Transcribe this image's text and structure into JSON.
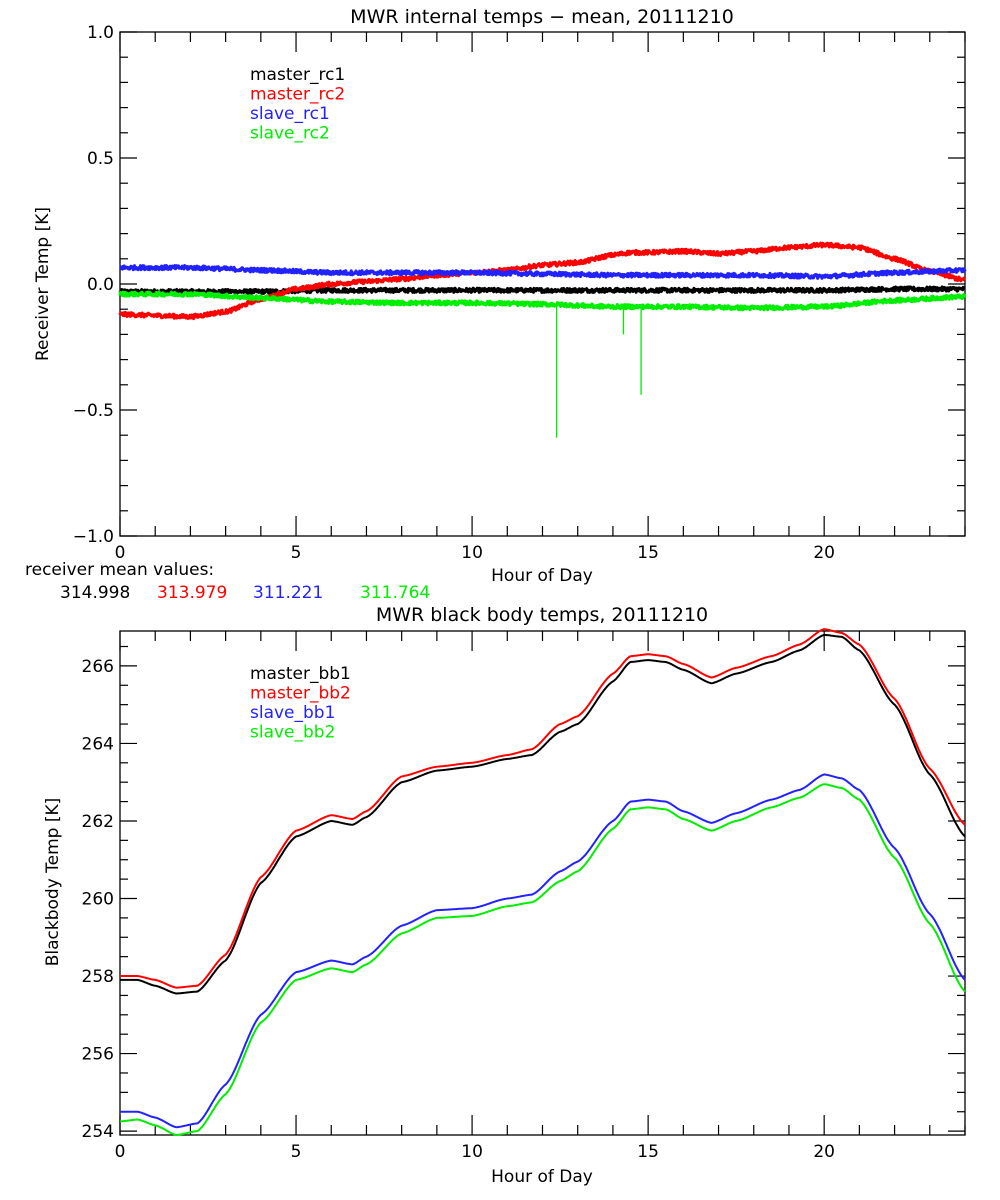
{
  "chart_data": [
    {
      "type": "line",
      "title": "MWR internal temps − mean, 20111210",
      "xlabel": "Hour of Day",
      "ylabel": "Receiver Temp [K]",
      "xlim": [
        0,
        24
      ],
      "ylim": [
        -1.0,
        1.0
      ],
      "xticks": [
        0,
        5,
        10,
        15,
        20
      ],
      "xtick_labels": [
        "0",
        "5",
        "10",
        "15",
        "20"
      ],
      "x_minor_step": 1,
      "yticks": [
        -1.0,
        -0.5,
        0.0,
        0.5,
        1.0
      ],
      "ytick_labels": [
        "−1.0",
        "−0.5",
        "0.0",
        "0.5",
        "1.0"
      ],
      "y_minor_step": 0.1,
      "grid": false,
      "legend_position": "top-left",
      "noise": 0.008,
      "series": [
        {
          "name": "master_rc1",
          "color": "#000000",
          "x": [
            0,
            2,
            4,
            6,
            8,
            10,
            12,
            14,
            16,
            18,
            20,
            22,
            24
          ],
          "y": [
            -0.03,
            -0.03,
            -0.03,
            -0.025,
            -0.025,
            -0.025,
            -0.025,
            -0.025,
            -0.025,
            -0.025,
            -0.025,
            -0.02,
            -0.02
          ]
        },
        {
          "name": "master_rc2",
          "color": "#ff0000",
          "x": [
            0,
            1,
            2,
            3,
            4,
            5,
            6,
            7,
            8,
            9,
            10,
            11,
            12,
            13,
            14,
            14.5,
            15,
            16,
            17,
            18,
            19,
            20,
            21,
            22,
            23,
            24
          ],
          "y": [
            -0.12,
            -0.125,
            -0.13,
            -0.11,
            -0.06,
            -0.02,
            0.0,
            0.01,
            0.02,
            0.035,
            0.045,
            0.055,
            0.075,
            0.085,
            0.115,
            0.125,
            0.125,
            0.13,
            0.12,
            0.13,
            0.145,
            0.155,
            0.145,
            0.1,
            0.05,
            0.015
          ]
        },
        {
          "name": "slave_rc1",
          "color": "#2222ff",
          "x": [
            0,
            2,
            4,
            6,
            8,
            10,
            12,
            14,
            16,
            18,
            20,
            22,
            24
          ],
          "y": [
            0.065,
            0.065,
            0.055,
            0.045,
            0.045,
            0.045,
            0.04,
            0.035,
            0.035,
            0.035,
            0.03,
            0.045,
            0.055
          ]
        },
        {
          "name": "slave_rc2",
          "color": "#00ee00",
          "x": [
            0,
            2,
            4,
            6,
            8,
            10,
            12,
            14,
            16,
            18,
            20,
            22,
            24
          ],
          "y": [
            -0.04,
            -0.04,
            -0.055,
            -0.07,
            -0.075,
            -0.075,
            -0.08,
            -0.09,
            -0.09,
            -0.095,
            -0.09,
            -0.065,
            -0.05
          ],
          "spikes": [
            {
              "x": 12.4,
              "y": -0.61
            },
            {
              "x": 14.3,
              "y": -0.2
            },
            {
              "x": 14.8,
              "y": -0.44
            }
          ]
        }
      ],
      "annotation": {
        "label": "receiver mean values:",
        "values": [
          {
            "text": "314.998",
            "color": "#000000"
          },
          {
            "text": "313.979",
            "color": "#ff0000"
          },
          {
            "text": "311.221",
            "color": "#2222ff"
          },
          {
            "text": "311.764",
            "color": "#00ee00"
          }
        ]
      }
    },
    {
      "type": "line",
      "title": "MWR black body temps, 20111210",
      "xlabel": "Hour of Day",
      "ylabel": "Blackbody Temp [K]",
      "xlim": [
        0,
        24
      ],
      "ylim": [
        253.9,
        266.9
      ],
      "xticks": [
        0,
        5,
        10,
        15,
        20
      ],
      "xtick_labels": [
        "0",
        "5",
        "10",
        "15",
        "20"
      ],
      "x_minor_step": 1,
      "yticks": [
        254,
        256,
        258,
        260,
        262,
        264,
        266
      ],
      "ytick_labels": [
        "254",
        "256",
        "258",
        "260",
        "262",
        "264",
        "266"
      ],
      "y_minor_step": 0.5,
      "grid": false,
      "legend_position": "top-left",
      "series": [
        {
          "name": "master_bb1",
          "color": "#000000",
          "x": [
            0,
            0.5,
            1,
            1.6,
            2.2,
            3,
            4,
            5,
            6,
            6.6,
            7,
            8,
            9,
            10,
            11,
            11.7,
            12.5,
            13,
            14,
            14.5,
            15,
            15.5,
            16,
            16.8,
            17.5,
            18.5,
            19.3,
            20,
            20.5,
            21,
            22,
            23,
            24
          ],
          "y": [
            257.9,
            257.9,
            257.75,
            257.55,
            257.6,
            258.4,
            260.4,
            261.6,
            262.0,
            261.9,
            262.1,
            263.0,
            263.3,
            263.4,
            263.6,
            263.7,
            264.3,
            264.5,
            265.6,
            266.1,
            266.15,
            266.1,
            265.9,
            265.55,
            265.8,
            266.1,
            266.4,
            266.8,
            266.75,
            266.4,
            265.0,
            263.2,
            261.6
          ]
        },
        {
          "name": "master_bb2",
          "color": "#ff0000",
          "x": [
            0,
            0.5,
            1,
            1.6,
            2.2,
            3,
            4,
            5,
            6,
            6.6,
            7,
            8,
            9,
            10,
            11,
            11.7,
            12.5,
            13,
            14,
            14.5,
            15,
            15.5,
            16,
            16.8,
            17.5,
            18.5,
            19.3,
            20,
            20.5,
            21,
            22,
            23,
            24
          ],
          "y": [
            258.0,
            258.0,
            257.9,
            257.7,
            257.75,
            258.55,
            260.55,
            261.75,
            262.15,
            262.05,
            262.25,
            263.15,
            263.4,
            263.5,
            263.7,
            263.85,
            264.5,
            264.7,
            265.8,
            266.25,
            266.3,
            266.25,
            266.05,
            265.7,
            265.95,
            266.25,
            266.55,
            266.95,
            266.85,
            266.55,
            265.15,
            263.35,
            261.9
          ]
        },
        {
          "name": "slave_bb1",
          "color": "#2222ff",
          "x": [
            0,
            0.5,
            1,
            1.6,
            2.2,
            3,
            4,
            5,
            6,
            6.6,
            7,
            8,
            9,
            10,
            11,
            11.7,
            12.5,
            13,
            14,
            14.5,
            15,
            15.5,
            16,
            16.8,
            17.5,
            18.5,
            19.3,
            20,
            20.5,
            21,
            22,
            23,
            24
          ],
          "y": [
            254.5,
            254.5,
            254.35,
            254.1,
            254.2,
            255.2,
            257.0,
            258.1,
            258.4,
            258.3,
            258.5,
            259.3,
            259.7,
            259.75,
            260.0,
            260.1,
            260.7,
            260.95,
            262.0,
            262.5,
            262.55,
            262.5,
            262.25,
            261.95,
            262.2,
            262.55,
            262.8,
            263.2,
            263.1,
            262.8,
            261.3,
            259.6,
            257.9
          ]
        },
        {
          "name": "slave_bb2",
          "color": "#00ee00",
          "x": [
            0,
            0.5,
            1,
            1.6,
            2.2,
            3,
            4,
            5,
            6,
            6.6,
            7,
            8,
            9,
            10,
            11,
            11.7,
            12.5,
            13,
            14,
            14.5,
            15,
            15.5,
            16,
            16.8,
            17.5,
            18.5,
            19.3,
            20,
            20.5,
            21,
            22,
            23,
            24
          ],
          "y": [
            254.25,
            254.3,
            254.15,
            253.9,
            254.0,
            254.95,
            256.8,
            257.9,
            258.2,
            258.1,
            258.3,
            259.1,
            259.5,
            259.55,
            259.8,
            259.9,
            260.45,
            260.7,
            261.8,
            262.3,
            262.35,
            262.3,
            262.05,
            261.75,
            262.0,
            262.35,
            262.6,
            262.95,
            262.85,
            262.55,
            261.05,
            259.35,
            257.6
          ]
        }
      ]
    }
  ]
}
